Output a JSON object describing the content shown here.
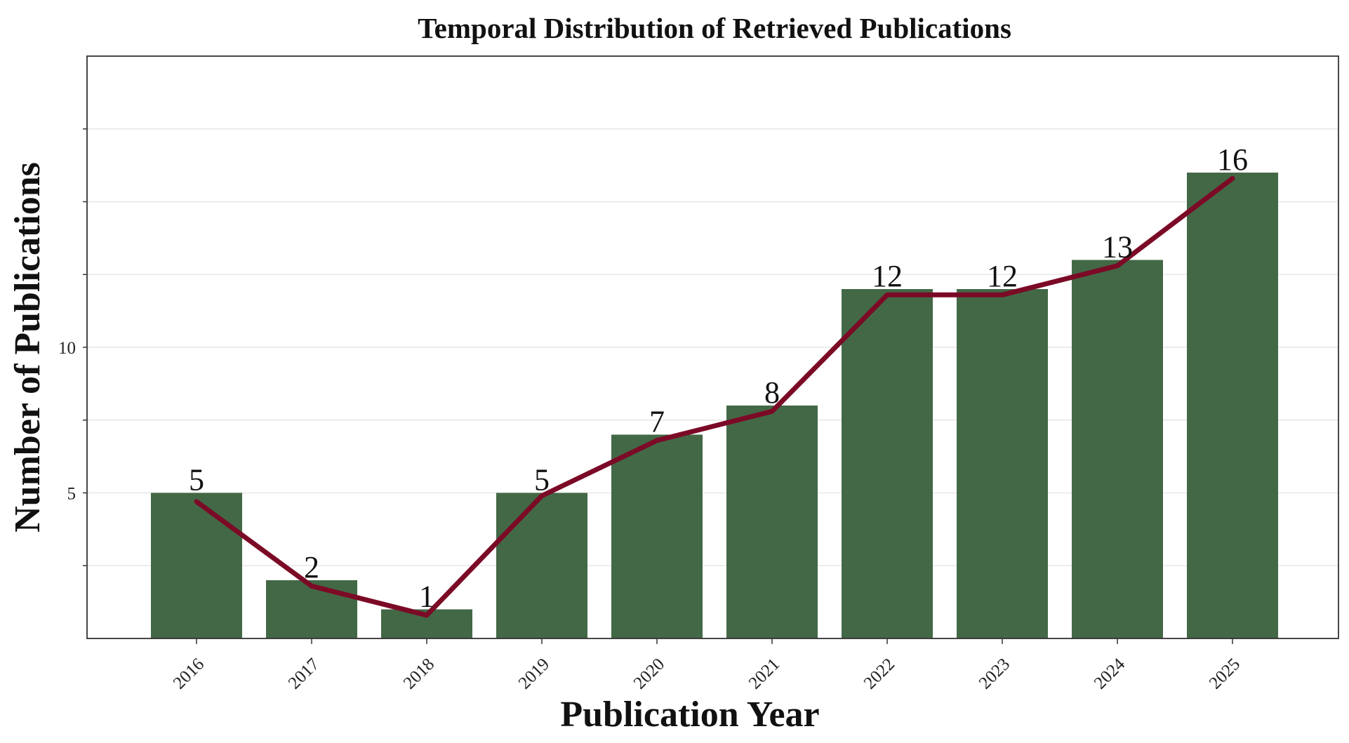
{
  "chart_data": {
    "type": "bar",
    "title": "Temporal Distribution of Retrieved Publications",
    "xlabel": "Publication Year",
    "ylabel": "Number of Publications",
    "categories": [
      "2016",
      "2017",
      "2018",
      "2019",
      "2020",
      "2021",
      "2022",
      "2023",
      "2024",
      "2025"
    ],
    "series": [
      {
        "type": "bar",
        "values": [
          5,
          2,
          1,
          5,
          7,
          8,
          12,
          12,
          13,
          16
        ]
      },
      {
        "type": "line",
        "values": [
          4.7,
          1.8,
          0.8,
          4.9,
          6.8,
          7.8,
          11.8,
          11.8,
          12.8,
          15.8
        ]
      }
    ],
    "data_labels": [
      "5",
      "2",
      "1",
      "5",
      "7",
      "8",
      "12",
      "12",
      "13",
      "16"
    ],
    "yticks": [
      5,
      10
    ],
    "ylim": [
      0,
      20
    ],
    "grid": true,
    "colors": {
      "bar": "#436846",
      "line": "#7b0a26",
      "frame": "#333333"
    }
  }
}
